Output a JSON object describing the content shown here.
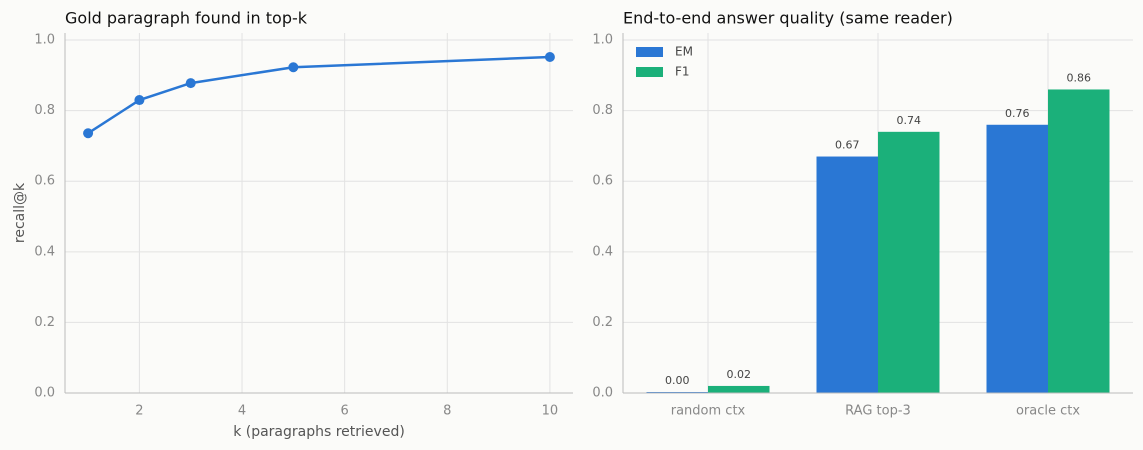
{
  "chart_data": [
    {
      "type": "line",
      "title": "Gold paragraph found in top-k",
      "xlabel": "k (paragraphs retrieved)",
      "ylabel": "recall@k",
      "x": [
        1,
        2,
        3,
        5,
        10
      ],
      "series": [
        {
          "name": "recall@k",
          "color": "#2a77d4",
          "values": [
            0.736,
            0.83,
            0.878,
            0.923,
            0.952
          ]
        }
      ],
      "xlim": [
        0.55,
        10.45
      ],
      "xticks": [
        2,
        4,
        6,
        8,
        10
      ],
      "ylim": [
        0,
        1.02
      ],
      "yticks": [
        {
          "value": 0,
          "label": "0.0"
        },
        {
          "value": 0.2,
          "label": "0.2"
        },
        {
          "value": 0.4,
          "label": "0.4"
        },
        {
          "value": 0.6,
          "label": "0.6"
        },
        {
          "value": 0.8,
          "label": "0.8"
        },
        {
          "value": 1,
          "label": "1.0"
        }
      ],
      "grid": true
    },
    {
      "type": "bar",
      "title": "End-to-end answer quality (same reader)",
      "categories": [
        "random ctx",
        "RAG top-3",
        "oracle ctx"
      ],
      "series": [
        {
          "name": "EM",
          "color": "#2a77d4",
          "values": [
            0.0,
            0.67,
            0.76
          ],
          "value_labels": [
            "0.00",
            "0.67",
            "0.76"
          ]
        },
        {
          "name": "F1",
          "color": "#1bb07a",
          "values": [
            0.02,
            0.74,
            0.86
          ],
          "value_labels": [
            "0.02",
            "0.74",
            "0.86"
          ]
        }
      ],
      "ylim": [
        0,
        1.02
      ],
      "yticks": [
        {
          "value": 0,
          "label": "0.0"
        },
        {
          "value": 0.2,
          "label": "0.2"
        },
        {
          "value": 0.4,
          "label": "0.4"
        },
        {
          "value": 0.6,
          "label": "0.6"
        },
        {
          "value": 0.8,
          "label": "0.8"
        },
        {
          "value": 1,
          "label": "1.0"
        }
      ],
      "grid": true,
      "legend": "upper-left"
    }
  ]
}
